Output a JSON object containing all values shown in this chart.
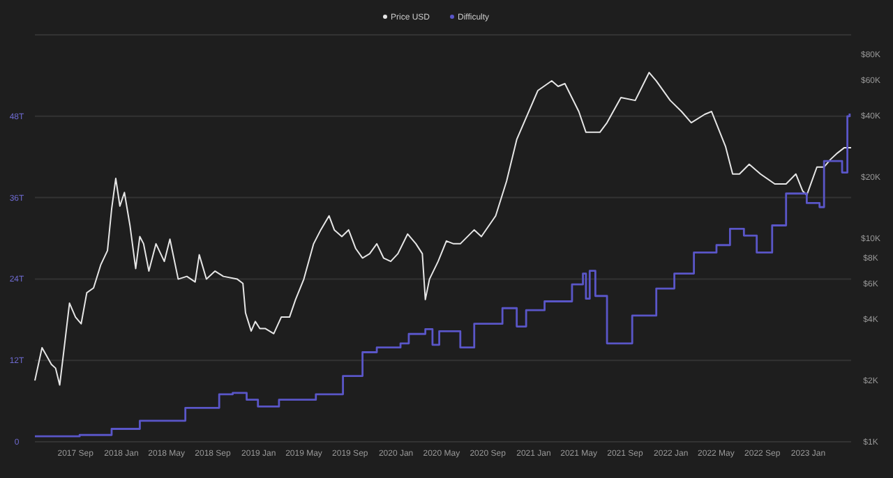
{
  "chart_data": {
    "type": "line",
    "legend": "top",
    "grid": "y",
    "log": "y2",
    "xlim": [
      "2017-05-16",
      "2023-04-25"
    ],
    "xticks": [
      {
        "value": "2017-09-01",
        "label": "2017 Sep"
      },
      {
        "value": "2018-01-01",
        "label": "2018 Jan"
      },
      {
        "value": "2018-05-01",
        "label": "2018 May"
      },
      {
        "value": "2018-09-01",
        "label": "2018 Sep"
      },
      {
        "value": "2019-01-01",
        "label": "2019 Jan"
      },
      {
        "value": "2019-05-01",
        "label": "2019 May"
      },
      {
        "value": "2019-09-01",
        "label": "2019 Sep"
      },
      {
        "value": "2020-01-01",
        "label": "2020 Jan"
      },
      {
        "value": "2020-05-01",
        "label": "2020 May"
      },
      {
        "value": "2020-09-01",
        "label": "2020 Sep"
      },
      {
        "value": "2021-01-01",
        "label": "2021 Jan"
      },
      {
        "value": "2021-05-01",
        "label": "2021 May"
      },
      {
        "value": "2021-09-01",
        "label": "2021 Sep"
      },
      {
        "value": "2022-01-01",
        "label": "2022 Jan"
      },
      {
        "value": "2022-05-01",
        "label": "2022 May"
      },
      {
        "value": "2022-09-01",
        "label": "2022 Sep"
      },
      {
        "value": "2023-01-01",
        "label": "2023 Jan"
      }
    ],
    "ylim": [
      0,
      60
    ],
    "yticks": [
      {
        "value": 0,
        "label": "0"
      },
      {
        "value": 12,
        "label": "12T"
      },
      {
        "value": 24,
        "label": "24T"
      },
      {
        "value": 36,
        "label": "36T"
      },
      {
        "value": 48,
        "label": "48T"
      },
      {
        "value": 60,
        "label": null
      }
    ],
    "y2lim": [
      1000,
      100000
    ],
    "y2ticks": [
      {
        "value": 1000,
        "label": "$1K"
      },
      {
        "value": 2000,
        "label": "$2K"
      },
      {
        "value": 4000,
        "label": "$4K"
      },
      {
        "value": 6000,
        "label": "$6K"
      },
      {
        "value": 8000,
        "label": "$8K"
      },
      {
        "value": 10000,
        "label": "$10K"
      },
      {
        "value": 20000,
        "label": "$20K"
      },
      {
        "value": 40000,
        "label": "$40K"
      },
      {
        "value": 60000,
        "label": "$60K"
      },
      {
        "value": 80000,
        "label": "$80K"
      }
    ],
    "series": [
      {
        "name": "Price USD",
        "type": "line",
        "axis": "y2",
        "color": "#e6e6e6",
        "x": [
          "2017-05-16",
          "2017-06-04",
          "2017-06-29",
          "2017-07-10",
          "2017-07-21",
          "2017-08-01",
          "2017-08-16",
          "2017-09-01",
          "2017-09-16",
          "2017-10-01",
          "2017-10-19",
          "2017-11-07",
          "2017-11-25",
          "2017-12-06",
          "2017-12-17",
          "2017-12-28",
          "2018-01-09",
          "2018-01-24",
          "2018-02-08",
          "2018-02-19",
          "2018-03-01",
          "2018-03-15",
          "2018-04-03",
          "2018-04-25",
          "2018-05-10",
          "2018-06-01",
          "2018-06-24",
          "2018-07-16",
          "2018-07-27",
          "2018-08-15",
          "2018-09-07",
          "2018-09-29",
          "2018-11-05",
          "2018-11-20",
          "2018-11-27",
          "2018-12-12",
          "2018-12-23",
          "2019-01-04",
          "2019-01-19",
          "2019-02-10",
          "2019-03-02",
          "2019-03-24",
          "2019-04-09",
          "2019-05-01",
          "2019-05-27",
          "2019-06-15",
          "2019-07-07",
          "2019-07-21",
          "2019-08-10",
          "2019-08-28",
          "2019-09-16",
          "2019-10-04",
          "2019-10-23",
          "2019-11-11",
          "2019-11-29",
          "2019-12-18",
          "2020-01-06",
          "2020-02-01",
          "2020-02-23",
          "2020-03-11",
          "2020-03-19",
          "2020-03-30",
          "2020-04-22",
          "2020-05-14",
          "2020-06-02",
          "2020-06-20",
          "2020-07-27",
          "2020-08-15",
          "2020-09-22",
          "2020-10-21",
          "2020-11-17",
          "2021-01-12",
          "2021-02-18",
          "2021-03-07",
          "2021-03-25",
          "2021-05-01",
          "2021-05-20",
          "2021-06-26",
          "2021-07-15",
          "2021-08-21",
          "2021-09-28",
          "2021-11-04",
          "2021-11-23",
          "2021-12-30",
          "2022-01-29",
          "2022-02-24",
          "2022-04-01",
          "2022-04-19",
          "2022-05-26",
          "2022-06-14",
          "2022-07-02",
          "2022-07-28",
          "2022-08-27",
          "2022-10-04",
          "2022-11-03",
          "2022-11-29",
          "2022-12-17",
          "2022-12-28",
          "2023-01-24",
          "2023-02-12",
          "2023-03-01",
          "2023-03-19",
          "2023-04-07",
          "2023-04-25"
        ],
        "values": [
          2000,
          2900,
          2400,
          2300,
          1900,
          2800,
          4800,
          4100,
          3800,
          5400,
          5700,
          7400,
          8700,
          13900,
          19700,
          14400,
          16800,
          11500,
          7100,
          10200,
          9400,
          6900,
          9400,
          7700,
          9900,
          6300,
          6500,
          6100,
          8300,
          6300,
          6900,
          6500,
          6300,
          6000,
          4300,
          3500,
          3900,
          3600,
          3600,
          3400,
          4100,
          4100,
          5000,
          6300,
          9400,
          11000,
          12900,
          11000,
          10200,
          11000,
          8900,
          8000,
          8400,
          9400,
          8000,
          7700,
          8400,
          10500,
          9400,
          8400,
          5000,
          6300,
          7700,
          9700,
          9400,
          9400,
          11000,
          10200,
          12900,
          19100,
          30600,
          53200,
          59400,
          55800,
          57600,
          42000,
          33200,
          33200,
          37000,
          49200,
          47600,
          65300,
          59400,
          47600,
          42000,
          37000,
          40700,
          42000,
          28300,
          20700,
          20700,
          23100,
          20700,
          18500,
          18500,
          20700,
          17100,
          16300,
          22400,
          22400,
          24400,
          26200,
          27900,
          27900
        ]
      },
      {
        "name": "Difficulty",
        "type": "step",
        "axis": "y",
        "color": "#5a56c8",
        "x": [
          "2017-05-16",
          "2017-09-12",
          "2017-12-06",
          "2018-02-19",
          "2018-06-20",
          "2018-09-18",
          "2018-10-24",
          "2018-11-30",
          "2018-12-30",
          "2019-02-24",
          "2019-06-02",
          "2019-08-13",
          "2019-10-04",
          "2019-11-11",
          "2020-01-13",
          "2020-02-04",
          "2020-03-19",
          "2020-04-07",
          "2020-04-25",
          "2020-06-20",
          "2020-07-27",
          "2020-10-10",
          "2020-11-17",
          "2020-12-12",
          "2021-01-30",
          "2021-04-13",
          "2021-05-12",
          "2021-05-20",
          "2021-05-30",
          "2021-06-14",
          "2021-07-15",
          "2021-08-13",
          "2021-09-20",
          "2021-11-23",
          "2022-01-10",
          "2022-03-03",
          "2022-05-02",
          "2022-06-07",
          "2022-07-14",
          "2022-08-17",
          "2022-09-27",
          "2022-11-03",
          "2022-12-28",
          "2023-01-31",
          "2023-02-12",
          "2023-04-01",
          "2023-04-15",
          "2023-04-21"
        ],
        "values": [
          0.8,
          1,
          1.9,
          3.1,
          5,
          7,
          7.2,
          6.2,
          5.2,
          6.2,
          7,
          9.7,
          13.2,
          13.9,
          14.5,
          15.9,
          16.6,
          14.3,
          16.3,
          13.9,
          17.4,
          19.7,
          17,
          19.4,
          20.7,
          23.2,
          24.8,
          21.1,
          25.2,
          21.5,
          14.5,
          14.5,
          18.6,
          22.6,
          24.8,
          27.9,
          29,
          31.4,
          30.4,
          27.9,
          31.9,
          36.6,
          35.2,
          34.6,
          41.4,
          39.7,
          48,
          48.4
        ]
      }
    ]
  }
}
